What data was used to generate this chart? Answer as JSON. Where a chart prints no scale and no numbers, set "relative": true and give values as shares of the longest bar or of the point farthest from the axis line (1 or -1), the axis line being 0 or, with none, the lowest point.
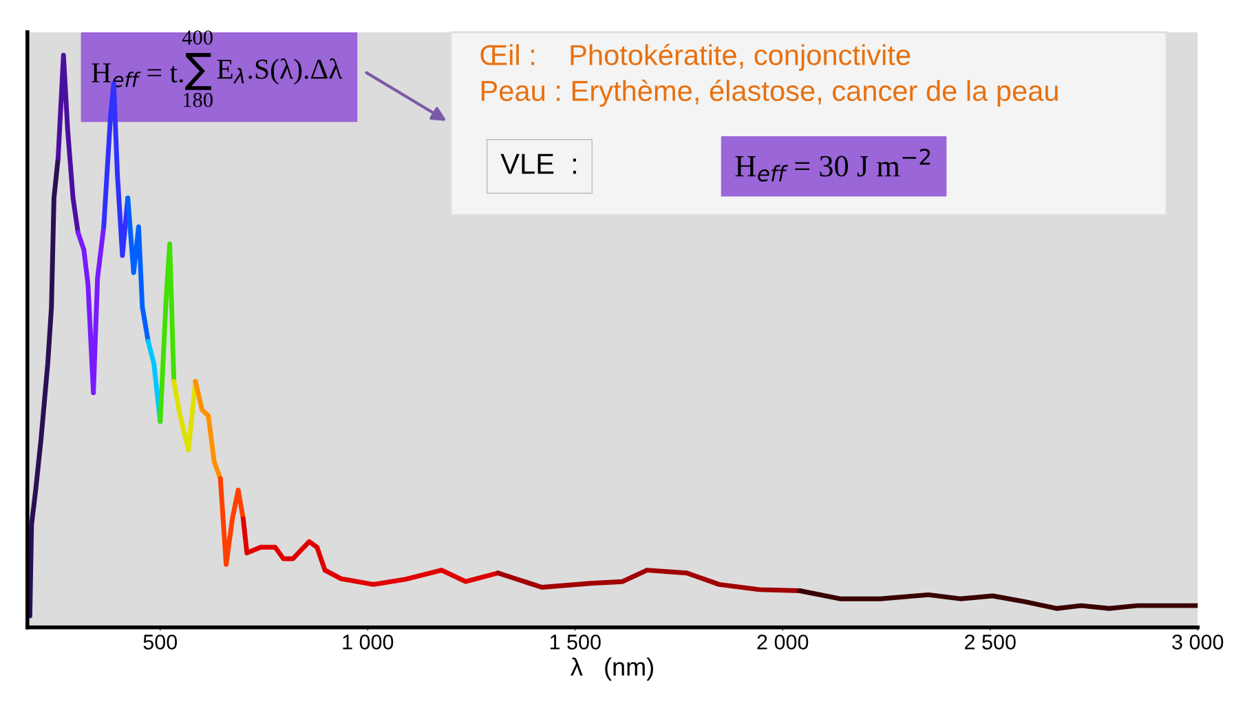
{
  "chart_data": {
    "type": "line",
    "relative": true,
    "xlabel": "λ   (nm)",
    "xlim": [
      180,
      3000
    ],
    "xticks": [
      {
        "value": 500,
        "label": "500"
      },
      {
        "value": 1000,
        "label": "1 000"
      },
      {
        "value": 1500,
        "label": "1 500"
      },
      {
        "value": 2000,
        "label": "2 000"
      },
      {
        "value": 2500,
        "label": "2 500"
      },
      {
        "value": 3000,
        "label": "3 000"
      }
    ],
    "grid": false,
    "legend": false,
    "marker": "none",
    "line_style": "solid",
    "series": [
      {
        "color": "#2a0f55",
        "x": [
          186,
          190,
          200,
          213,
          229,
          238,
          244,
          254
        ],
        "values": [
          0.02,
          0.18,
          0.24,
          0.33,
          0.46,
          0.56,
          0.75,
          0.82
        ]
      },
      {
        "color": "#4b0fa0",
        "x": [
          254,
          267,
          277,
          290,
          302
        ],
        "values": [
          0.82,
          1.0,
          0.87,
          0.75,
          0.69
        ]
      },
      {
        "color": "#7a1aff",
        "x": [
          302,
          316,
          326,
          339,
          349,
          364
        ],
        "values": [
          0.69,
          0.66,
          0.6,
          0.41,
          0.61,
          0.7
        ]
      },
      {
        "color": "#3030ff",
        "x": [
          364,
          380,
          388,
          397,
          409,
          422
        ],
        "values": [
          0.7,
          0.89,
          0.95,
          0.79,
          0.65,
          0.75
        ]
      },
      {
        "color": "#0060ff",
        "x": [
          422,
          436,
          448,
          457,
          471
        ],
        "values": [
          0.75,
          0.62,
          0.7,
          0.56,
          0.5
        ]
      },
      {
        "color": "#00c8ff",
        "x": [
          471,
          485,
          500
        ],
        "values": [
          0.5,
          0.46,
          0.36
        ]
      },
      {
        "color": "#40e000",
        "x": [
          500,
          514,
          523,
          533
        ],
        "values": [
          0.36,
          0.57,
          0.67,
          0.43
        ]
      },
      {
        "color": "#e0e000",
        "x": [
          533,
          548,
          568,
          585
        ],
        "values": [
          0.43,
          0.37,
          0.31,
          0.43
        ]
      },
      {
        "color": "#ff9000",
        "x": [
          585,
          601,
          616,
          630,
          645
        ],
        "values": [
          0.43,
          0.38,
          0.37,
          0.29,
          0.26
        ]
      },
      {
        "color": "#ff4000",
        "x": [
          645,
          659,
          674,
          688,
          700
        ],
        "values": [
          0.26,
          0.11,
          0.19,
          0.24,
          0.19
        ]
      },
      {
        "color": "#e00000",
        "x": [
          700,
          709,
          742,
          777,
          797,
          820,
          859,
          878,
          897,
          936,
          1014,
          1091,
          1178,
          1236,
          1314
        ],
        "values": [
          0.19,
          0.13,
          0.14,
          0.14,
          0.12,
          0.12,
          0.15,
          0.14,
          0.1,
          0.085,
          0.075,
          0.084,
          0.1,
          0.08,
          0.095
        ]
      },
      {
        "color": "#a00000",
        "x": [
          1314,
          1420,
          1537,
          1614,
          1673,
          1769,
          1847,
          1944,
          2041
        ],
        "values": [
          0.095,
          0.07,
          0.077,
          0.08,
          0.1,
          0.095,
          0.075,
          0.066,
          0.064
        ]
      },
      {
        "color": "#3a0000",
        "x": [
          2041,
          2138,
          2235,
          2351,
          2428,
          2506,
          2583,
          2661,
          2719,
          2787,
          2855,
          3000
        ],
        "values": [
          0.064,
          0.05,
          0.05,
          0.057,
          0.05,
          0.055,
          0.045,
          0.033,
          0.038,
          0.033,
          0.038,
          0.038
        ]
      }
    ],
    "annotations": [
      "H$_{eff}$ = t.∑",
      "400",
      "180",
      "E$_{λ}$.S(λ).Δλ",
      "Œil :    Photokératite, conjonctivite",
      "Peau : Erythème, élastose, cancer de la peau",
      "VLE  :",
      "H$_{eff}$ = 30 J m$^{−2}$"
    ]
  }
}
